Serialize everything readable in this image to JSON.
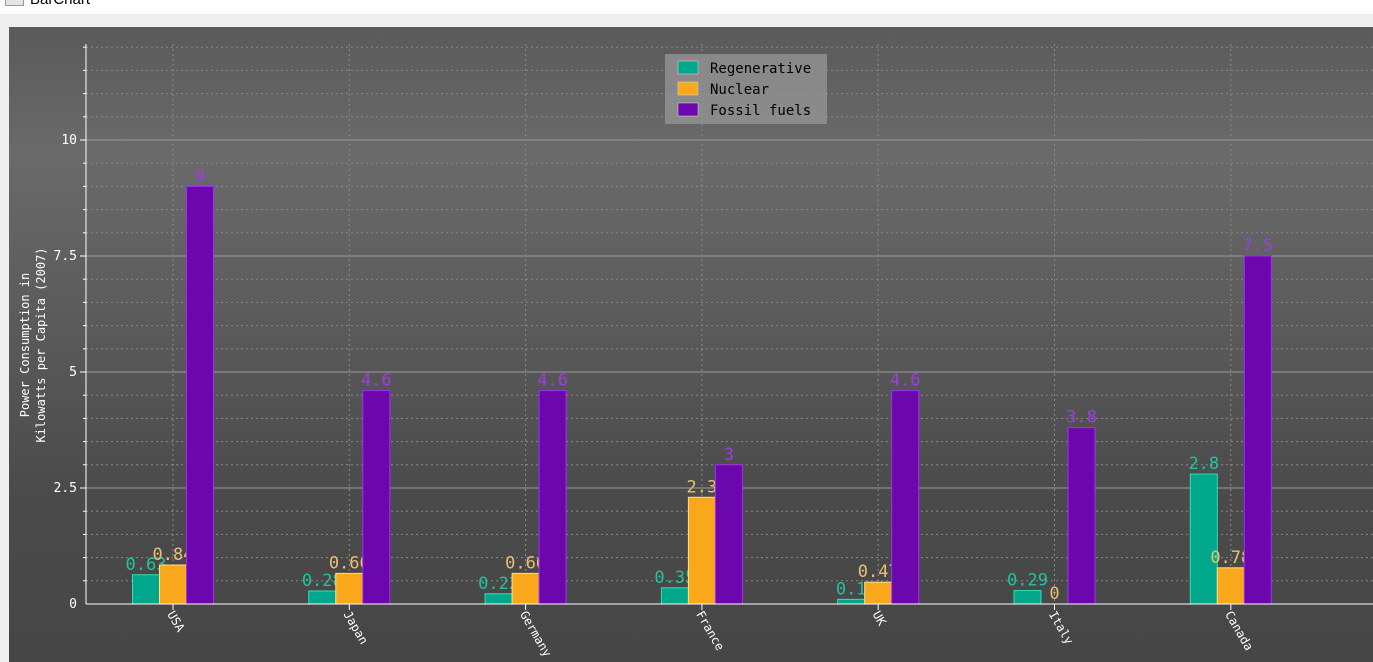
{
  "window": {
    "title": "BarChart"
  },
  "chart_data": {
    "type": "bar",
    "title": "",
    "xlabel": "",
    "ylabel": "Power Consumption in\nKilowatts per Capita (2007)",
    "ylim": [
      0,
      12
    ],
    "yticks": [
      0,
      2.5,
      5,
      7.5,
      10
    ],
    "ytick_labels": [
      "0",
      "2.5",
      "5",
      "7.5",
      "10"
    ],
    "grid": true,
    "legend_position": "top-center",
    "categories": [
      "USA",
      "Japan",
      "Germany",
      "France",
      "UK",
      "Italy",
      "Canada"
    ],
    "series": [
      {
        "name": "Regenerative",
        "color": "#00a78a",
        "values": [
          0.63,
          0.28,
          0.22,
          0.35,
          0.1,
          0.29,
          2.8
        ]
      },
      {
        "name": "Nuclear",
        "color": "#f8a81a",
        "values": [
          0.84,
          0.66,
          0.66,
          2.3,
          0.47,
          0,
          0.78
        ]
      },
      {
        "name": "Fossil fuels",
        "color": "#6c07ad",
        "values": [
          9,
          4.6,
          4.6,
          3,
          4.6,
          3.8,
          7.5
        ]
      }
    ],
    "label_colors": [
      "#1fc3a0",
      "#e8c074",
      "#9b3fe0"
    ]
  }
}
